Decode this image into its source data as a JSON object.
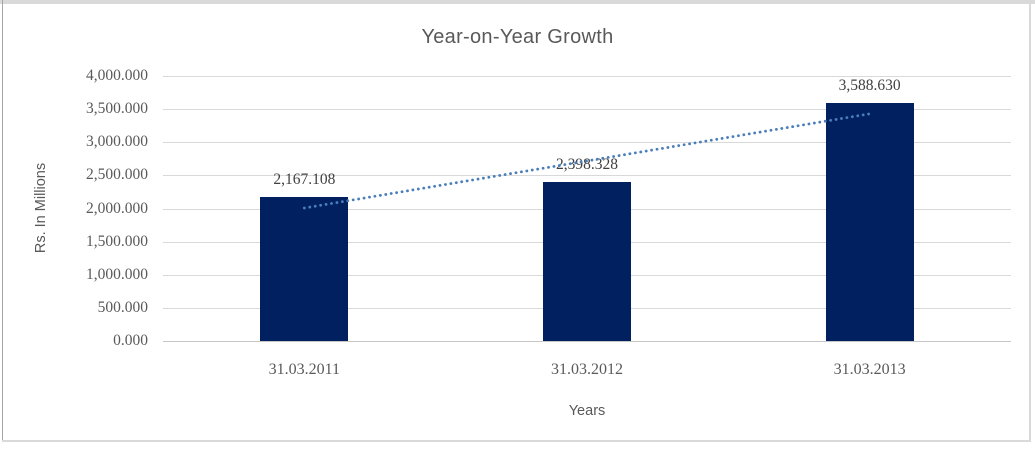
{
  "chart_data": {
    "type": "bar",
    "title": "Year-on-Year Growth",
    "xlabel": "Years",
    "ylabel": "Rs. In Millions",
    "categories": [
      "31.03.2011",
      "31.03.2012",
      "31.03.2013"
    ],
    "values": [
      2167.108,
      2398.328,
      3588.63
    ],
    "data_labels": [
      "2,167.108",
      "2,398.328",
      "3,588.630"
    ],
    "ylim": [
      0,
      4000
    ],
    "ytick_step": 500,
    "ytick_labels": [
      "0.000",
      "500.000",
      "1,000.000",
      "1,500.000",
      "2,000.000",
      "2,500.000",
      "3,000.000",
      "3,500.000",
      "4,000.000"
    ],
    "grid": true,
    "legend": "none",
    "bar_color": "#002060",
    "trendline": {
      "fit": "linear",
      "style": "dotted",
      "color": "#4a7ebb",
      "start_value": 2007.3,
      "end_value": 3428.8
    }
  },
  "frame": {
    "border_color": "#d9d9d9",
    "title_color": "#595959",
    "label_color": "#404040",
    "gridline_color": "#d9d9d9"
  }
}
